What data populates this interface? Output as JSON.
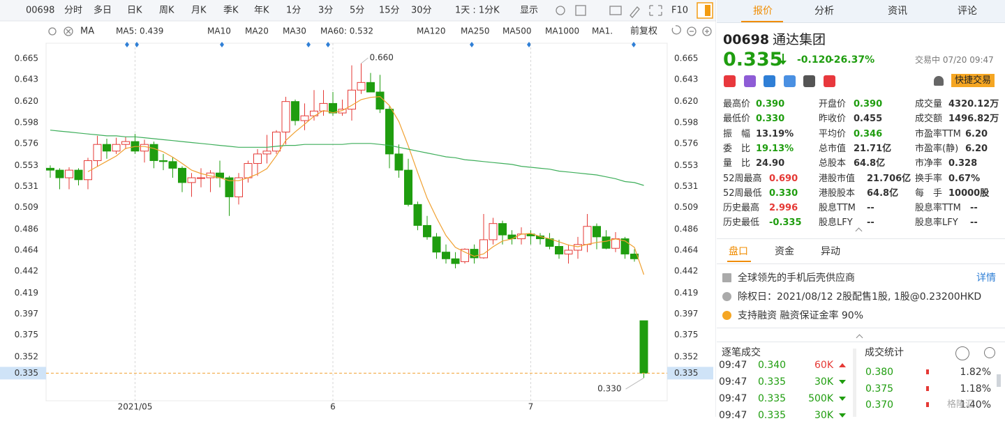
{
  "toolbar": {
    "code": "00698",
    "periods": [
      "分时",
      "多日",
      "日K",
      "周K",
      "月K",
      "季K",
      "年K",
      "1分",
      "3分",
      "5分",
      "15分",
      "30分",
      "1天 : 1分K",
      "显示"
    ],
    "active": 2,
    "f10": "F10"
  },
  "indicator_bar": {
    "ma": "MA",
    "items": [
      {
        "text": "MA5: 0.439",
        "color": "#f08c00"
      },
      {
        "text": "MA10",
        "color": "#9ccbe8"
      },
      {
        "text": "MA20",
        "color": "#9ccbe8"
      },
      {
        "text": "MA30",
        "color": "#9ccbe8"
      },
      {
        "text": "MA60: 0.532",
        "color": "#1c9e3a"
      },
      {
        "text": "MA120",
        "color": "#f2a5c8"
      },
      {
        "text": "MA250",
        "color": "#8fdcef"
      },
      {
        "text": "MA500",
        "color": "#f4e08c"
      },
      {
        "text": "MA1000",
        "color": "#9ccbe8"
      },
      {
        "text": "MA1.",
        "color": "#9ccbe8"
      }
    ],
    "adjust": "前复权"
  },
  "chart_data": {
    "type": "candlestick",
    "up_color": "#e53935",
    "down_color": "#1f9d0f",
    "categories": [
      null,
      null,
      null,
      null,
      null,
      null,
      null,
      null,
      null,
      "2021/05",
      null,
      null,
      null,
      null,
      null,
      null,
      null,
      null,
      null,
      null,
      null,
      null,
      null,
      null,
      null,
      null,
      null,
      null,
      null,
      null,
      "6",
      null,
      null,
      null,
      null,
      null,
      null,
      null,
      null,
      null,
      null,
      null,
      null,
      null,
      null,
      null,
      null,
      null,
      null,
      null,
      null,
      "7",
      null,
      null,
      null,
      null,
      null,
      null,
      null,
      null,
      null,
      null,
      null,
      null
    ],
    "open": [
      0.55,
      0.548,
      0.54,
      0.548,
      0.538,
      0.558,
      0.575,
      0.568,
      0.575,
      0.578,
      0.568,
      0.575,
      0.558,
      0.557,
      0.55,
      0.535,
      0.54,
      0.54,
      0.545,
      0.54,
      0.52,
      0.54,
      0.555,
      0.565,
      0.568,
      0.588,
      0.62,
      0.6,
      0.605,
      0.61,
      0.618,
      0.608,
      0.612,
      0.632,
      0.64,
      0.63,
      0.612,
      0.565,
      0.548,
      0.512,
      0.49,
      0.478,
      0.462,
      0.455,
      0.452,
      0.465,
      0.456,
      0.475,
      0.492,
      0.48,
      0.476,
      0.481,
      0.479,
      0.476,
      0.468,
      0.46,
      0.464,
      0.47,
      0.489,
      0.478,
      0.466,
      0.476,
      0.46,
      0.39
    ],
    "high": [
      0.553,
      0.55,
      0.551,
      0.55,
      0.561,
      0.584,
      0.581,
      0.582,
      0.583,
      0.586,
      0.58,
      0.578,
      0.565,
      0.562,
      0.552,
      0.545,
      0.55,
      0.548,
      0.558,
      0.542,
      0.545,
      0.558,
      0.57,
      0.585,
      0.59,
      0.625,
      0.622,
      0.618,
      0.632,
      0.632,
      0.63,
      0.622,
      0.658,
      0.66,
      0.65,
      0.648,
      0.615,
      0.575,
      0.56,
      0.515,
      0.5,
      0.482,
      0.47,
      0.462,
      0.466,
      0.47,
      0.502,
      0.498,
      0.495,
      0.485,
      0.488,
      0.485,
      0.482,
      0.482,
      0.475,
      0.47,
      0.478,
      0.502,
      0.492,
      0.485,
      0.483,
      0.478,
      0.465,
      0.39
    ],
    "low": [
      0.54,
      0.528,
      0.528,
      0.532,
      0.528,
      0.552,
      0.56,
      0.565,
      0.57,
      0.565,
      0.556,
      0.55,
      0.548,
      0.54,
      0.525,
      0.52,
      0.53,
      0.525,
      0.53,
      0.5,
      0.512,
      0.535,
      0.542,
      0.555,
      0.565,
      0.575,
      0.595,
      0.59,
      0.6,
      0.605,
      0.605,
      0.605,
      0.6,
      0.628,
      0.63,
      0.608,
      0.55,
      0.54,
      0.51,
      0.485,
      0.475,
      0.455,
      0.45,
      0.445,
      0.45,
      0.45,
      0.455,
      0.47,
      0.47,
      0.47,
      0.47,
      0.47,
      0.47,
      0.465,
      0.455,
      0.45,
      0.455,
      0.462,
      0.465,
      0.465,
      0.462,
      0.455,
      0.452,
      0.33
    ],
    "close": [
      0.548,
      0.54,
      0.548,
      0.538,
      0.558,
      0.575,
      0.568,
      0.575,
      0.578,
      0.568,
      0.575,
      0.558,
      0.557,
      0.55,
      0.535,
      0.54,
      0.54,
      0.545,
      0.54,
      0.52,
      0.54,
      0.555,
      0.565,
      0.568,
      0.588,
      0.62,
      0.6,
      0.605,
      0.61,
      0.618,
      0.608,
      0.612,
      0.632,
      0.64,
      0.63,
      0.612,
      0.565,
      0.548,
      0.512,
      0.49,
      0.478,
      0.462,
      0.455,
      0.45,
      0.465,
      0.456,
      0.475,
      0.492,
      0.48,
      0.476,
      0.481,
      0.479,
      0.476,
      0.468,
      0.46,
      0.464,
      0.47,
      0.489,
      0.478,
      0.466,
      0.476,
      0.46,
      0.455,
      0.335
    ],
    "series": [
      {
        "name": "MA5",
        "color": "#f0a030",
        "values": [
          null,
          null,
          null,
          null,
          0.5464,
          0.5518,
          0.5574,
          0.5628,
          0.5708,
          0.5728,
          0.5728,
          0.5708,
          0.5672,
          0.5616,
          0.555,
          0.548,
          0.5444,
          0.542,
          0.54,
          0.537,
          0.537,
          0.54,
          0.544,
          0.5496,
          0.5632,
          0.5792,
          0.5882,
          0.5962,
          0.6046,
          0.6106,
          0.6082,
          0.6106,
          0.616,
          0.622,
          0.6244,
          0.6252,
          0.6158,
          0.599,
          0.5734,
          0.5454,
          0.5186,
          0.498,
          0.4794,
          0.467,
          0.462,
          0.4576,
          0.4602,
          0.4676,
          0.4736,
          0.4758,
          0.4808,
          0.4816,
          0.4784,
          0.476,
          0.4728,
          0.4694,
          0.4676,
          0.4702,
          0.4722,
          0.4734,
          0.4758,
          0.4738,
          0.467,
          0.4384
        ]
      },
      {
        "name": "MA60",
        "color": "#3dae5a",
        "values": [
          0.59,
          0.589,
          0.588,
          0.587,
          0.586,
          0.585,
          0.584,
          0.584,
          0.583,
          0.583,
          0.582,
          0.581,
          0.58,
          0.579,
          0.578,
          0.577,
          0.576,
          0.575,
          0.574,
          0.573,
          0.572,
          0.572,
          0.572,
          0.572,
          0.573,
          0.574,
          0.574,
          0.575,
          0.575,
          0.575,
          0.575,
          0.575,
          0.576,
          0.576,
          0.576,
          0.575,
          0.574,
          0.572,
          0.57,
          0.568,
          0.566,
          0.564,
          0.562,
          0.561,
          0.559,
          0.558,
          0.557,
          0.556,
          0.555,
          0.554,
          0.552,
          0.551,
          0.55,
          0.549,
          0.547,
          0.546,
          0.545,
          0.544,
          0.543,
          0.541,
          0.539,
          0.536,
          0.535,
          0.532
        ]
      }
    ],
    "ylim": [
      0.306,
      0.679
    ],
    "yticks": [
      0.665,
      0.643,
      {
        "value": 0.62,
        "label": "0.620"
      },
      0.598,
      0.576,
      0.553,
      0.531,
      0.509,
      0.486,
      0.464,
      0.442,
      0.419,
      0.397,
      0.375,
      0.352
    ],
    "last_price": 0.335,
    "annotations": [
      {
        "value": 0.66,
        "label": "0.660",
        "kind": "high"
      },
      {
        "value": 0.33,
        "label": "0.330",
        "kind": "low"
      }
    ]
  },
  "quote": {
    "tabs": [
      "报价",
      "分析",
      "资讯",
      "评论"
    ],
    "code": "00698",
    "name": "通达集团",
    "price": "0.335",
    "change": "-0.120",
    "pct": "-26.37%",
    "status": "交易中 07/20 09:47",
    "trade_button": "快捷交易",
    "stats": [
      [
        {
          "label": "最高价",
          "value": "0.390",
          "tone": "down"
        },
        {
          "label": "最低价",
          "value": "0.330",
          "tone": "down"
        },
        {
          "label": "振　幅",
          "value": "13.19%"
        },
        {
          "label": "委　比",
          "value": "19.13%",
          "tone": "down"
        },
        {
          "label": "量　比",
          "value": "24.90"
        },
        {
          "label": "52周最高",
          "value": "0.690",
          "tone": "up"
        },
        {
          "label": "52周最低",
          "value": "0.330",
          "tone": "down"
        },
        {
          "label": "历史最高",
          "value": "2.996",
          "tone": "up"
        },
        {
          "label": "历史最低",
          "value": "-0.335",
          "tone": "down"
        }
      ],
      [
        {
          "label": "开盘价",
          "value": "0.390",
          "tone": "down"
        },
        {
          "label": "昨收价",
          "value": "0.455"
        },
        {
          "label": "平均价",
          "value": "0.346",
          "tone": "down"
        },
        {
          "label": "总市值",
          "value": "21.71亿"
        },
        {
          "label": "总股本",
          "value": "64.8亿"
        },
        {
          "label": "港股市值",
          "value": "21.706亿"
        },
        {
          "label": "港股股本",
          "value": "64.8亿"
        },
        {
          "label": "股息TTM",
          "value": "--"
        },
        {
          "label": "股息LFY",
          "value": "--"
        }
      ],
      [
        {
          "label": "成交量",
          "value": "4320.12万"
        },
        {
          "label": "成交额",
          "value": "1496.82万"
        },
        {
          "label": "市盈率TTM",
          "value": "6.20"
        },
        {
          "label": "市盈率(静)",
          "value": "6.20"
        },
        {
          "label": "市净率",
          "value": "0.328"
        },
        {
          "label": "换手率",
          "value": "0.67%"
        },
        {
          "label": "每　手",
          "value": "10000股"
        },
        {
          "label": "股息率TTM",
          "value": "--"
        },
        {
          "label": "股息率LFY",
          "value": "--"
        }
      ]
    ],
    "sub_tabs": [
      "盘口",
      "资金",
      "异动"
    ],
    "info": [
      {
        "text": "全球领先的手机后壳供应商",
        "link": "详情"
      },
      {
        "text": "除权日：2021/08/12  2股配售1股, 1股@0.23200HKD"
      },
      {
        "text": "支持融资 融资保证金率 90%"
      }
    ],
    "ticks_title": "逐笔成交",
    "ticks": [
      {
        "time": "09:47",
        "price": "0.340",
        "volume": "60K",
        "dir": "up"
      },
      {
        "time": "09:47",
        "price": "0.335",
        "volume": "30K",
        "dir": "down"
      },
      {
        "time": "09:47",
        "price": "0.335",
        "volume": "500K",
        "dir": "down"
      },
      {
        "time": "09:47",
        "price": "0.335",
        "volume": "30K",
        "dir": "down"
      }
    ],
    "dist_title": "成交统计",
    "dist": [
      {
        "price": "0.380",
        "pct": "1.82%"
      },
      {
        "price": "0.375",
        "pct": "1.18%"
      },
      {
        "price": "0.370",
        "pct": "1.40%"
      }
    ],
    "watermark": "格隆汇"
  }
}
